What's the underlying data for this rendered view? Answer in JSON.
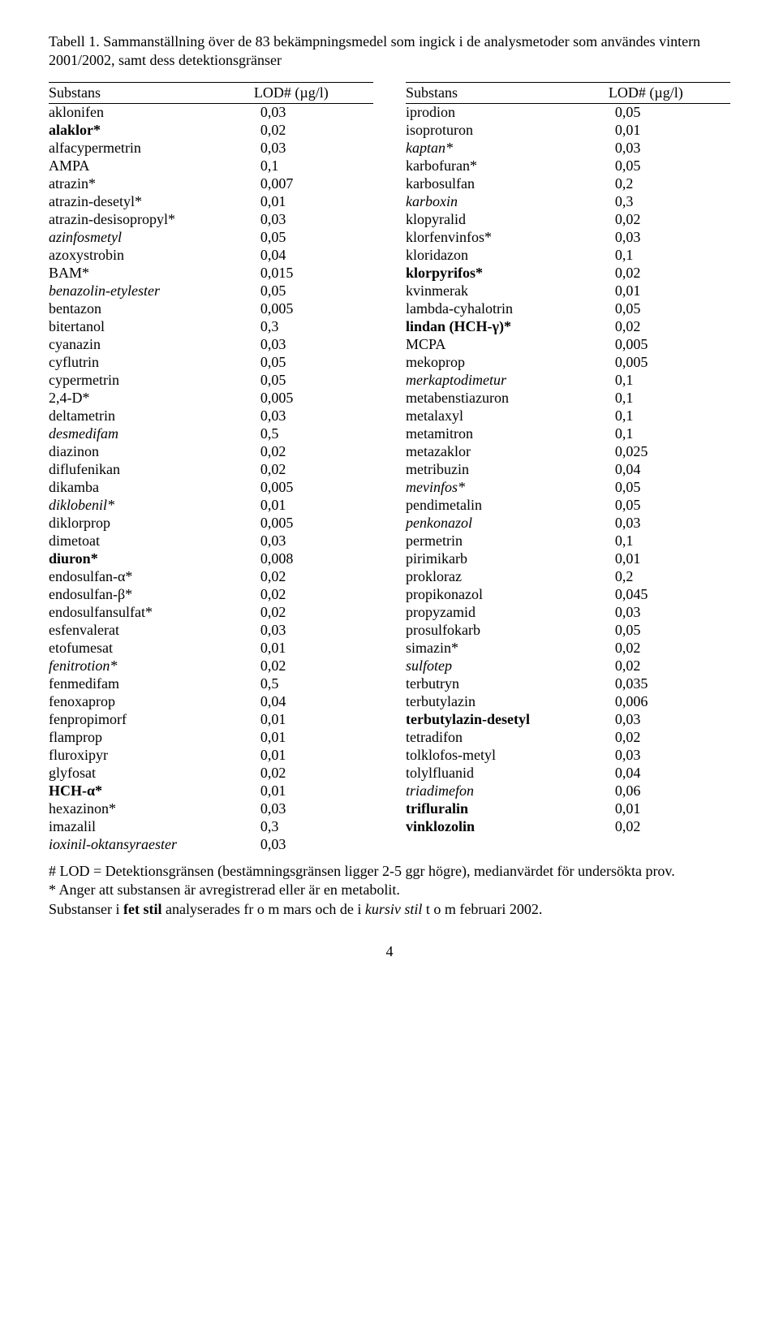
{
  "caption": "Tabell 1. Sammanställning över de 83 bekämpningsmedel som ingick i de analysmetoder som användes vintern 2001/2002, samt dess detektionsgränser",
  "header_substans": "Substans",
  "header_lod": "LOD# (µg/l)",
  "left": [
    {
      "name": "aklonifen",
      "val": "0,03",
      "style": ""
    },
    {
      "name": "alaklor*",
      "val": "0,02",
      "style": "bold"
    },
    {
      "name": "alfacypermetrin",
      "val": "0,03",
      "style": ""
    },
    {
      "name": "AMPA",
      "val": "0,1",
      "style": ""
    },
    {
      "name": "atrazin*",
      "val": "0,007",
      "style": ""
    },
    {
      "name": "atrazin-desetyl*",
      "val": "0,01",
      "style": ""
    },
    {
      "name": "atrazin-desisopropyl*",
      "val": "0,03",
      "style": ""
    },
    {
      "name": "azinfosmetyl",
      "val": "0,05",
      "style": "italic"
    },
    {
      "name": "azoxystrobin",
      "val": "0,04",
      "style": ""
    },
    {
      "name": "BAM*",
      "val": "0,015",
      "style": ""
    },
    {
      "name": "benazolin-etylester",
      "val": "0,05",
      "style": "italic"
    },
    {
      "name": "bentazon",
      "val": "0,005",
      "style": ""
    },
    {
      "name": "bitertanol",
      "val": "0,3",
      "style": ""
    },
    {
      "name": "cyanazin",
      "val": "0,03",
      "style": ""
    },
    {
      "name": "cyflutrin",
      "val": "0,05",
      "style": ""
    },
    {
      "name": "cypermetrin",
      "val": "0,05",
      "style": ""
    },
    {
      "name": "2,4-D*",
      "val": "0,005",
      "style": ""
    },
    {
      "name": "deltametrin",
      "val": "0,03",
      "style": ""
    },
    {
      "name": "desmedifam",
      "val": "0,5",
      "style": "italic"
    },
    {
      "name": "diazinon",
      "val": "0,02",
      "style": ""
    },
    {
      "name": "diflufenikan",
      "val": "0,02",
      "style": ""
    },
    {
      "name": "dikamba",
      "val": "0,005",
      "style": ""
    },
    {
      "name": "diklobenil*",
      "val": "0,01",
      "style": "italic"
    },
    {
      "name": "diklorprop",
      "val": "0,005",
      "style": ""
    },
    {
      "name": "dimetoat",
      "val": "0,03",
      "style": ""
    },
    {
      "name": "diuron*",
      "val": "0,008",
      "style": "bold"
    },
    {
      "name": "endosulfan-α*",
      "val": "0,02",
      "style": ""
    },
    {
      "name": "endosulfan-β*",
      "val": "0,02",
      "style": ""
    },
    {
      "name": "endosulfansulfat*",
      "val": "0,02",
      "style": ""
    },
    {
      "name": "esfenvalerat",
      "val": "0,03",
      "style": ""
    },
    {
      "name": "etofumesat",
      "val": "0,01",
      "style": ""
    },
    {
      "name": "fenitrotion*",
      "val": "0,02",
      "style": "italic"
    },
    {
      "name": "fenmedifam",
      "val": "0,5",
      "style": ""
    },
    {
      "name": "fenoxaprop",
      "val": "0,04",
      "style": ""
    },
    {
      "name": "fenpropimorf",
      "val": "0,01",
      "style": ""
    },
    {
      "name": "flamprop",
      "val": "0,01",
      "style": ""
    },
    {
      "name": "fluroxipyr",
      "val": "0,01",
      "style": ""
    },
    {
      "name": "glyfosat",
      "val": "0,02",
      "style": ""
    },
    {
      "name": "HCH-α*",
      "val": "0,01",
      "style": "bold"
    },
    {
      "name": "hexazinon*",
      "val": "0,03",
      "style": ""
    },
    {
      "name": "imazalil",
      "val": "0,3",
      "style": ""
    },
    {
      "name": "ioxinil-oktansyraester",
      "val": "0,03",
      "style": "italic"
    }
  ],
  "right": [
    {
      "name": "iprodion",
      "val": "0,05",
      "style": ""
    },
    {
      "name": "isoproturon",
      "val": "0,01",
      "style": ""
    },
    {
      "name": "kaptan*",
      "val": "0,03",
      "style": "italic"
    },
    {
      "name": "karbofuran*",
      "val": "0,05",
      "style": ""
    },
    {
      "name": "karbosulfan",
      "val": "0,2",
      "style": ""
    },
    {
      "name": "karboxin",
      "val": "0,3",
      "style": "italic"
    },
    {
      "name": "klopyralid",
      "val": "0,02",
      "style": ""
    },
    {
      "name": "klorfenvinfos*",
      "val": "0,03",
      "style": ""
    },
    {
      "name": "kloridazon",
      "val": "0,1",
      "style": ""
    },
    {
      "name": "klorpyrifos*",
      "val": "0,02",
      "style": "bold"
    },
    {
      "name": "kvinmerak",
      "val": "0,01",
      "style": ""
    },
    {
      "name": "lambda-cyhalotrin",
      "val": "0,05",
      "style": ""
    },
    {
      "name": "lindan (HCH-γ)*",
      "val": "0,02",
      "style": "bold"
    },
    {
      "name": "MCPA",
      "val": "0,005",
      "style": ""
    },
    {
      "name": "mekoprop",
      "val": "0,005",
      "style": ""
    },
    {
      "name": "merkaptodimetur",
      "val": "0,1",
      "style": "italic"
    },
    {
      "name": "metabenstiazuron",
      "val": "0,1",
      "style": ""
    },
    {
      "name": "metalaxyl",
      "val": "0,1",
      "style": ""
    },
    {
      "name": "metamitron",
      "val": "0,1",
      "style": ""
    },
    {
      "name": "metazaklor",
      "val": "0,025",
      "style": ""
    },
    {
      "name": "metribuzin",
      "val": "0,04",
      "style": ""
    },
    {
      "name": "mevinfos*",
      "val": "0,05",
      "style": "italic"
    },
    {
      "name": "pendimetalin",
      "val": "0,05",
      "style": ""
    },
    {
      "name": "penkonazol",
      "val": "0,03",
      "style": "italic"
    },
    {
      "name": "permetrin",
      "val": "0,1",
      "style": ""
    },
    {
      "name": "pirimikarb",
      "val": "0,01",
      "style": ""
    },
    {
      "name": "prokloraz",
      "val": "0,2",
      "style": ""
    },
    {
      "name": "propikonazol",
      "val": "0,045",
      "style": ""
    },
    {
      "name": "propyzamid",
      "val": "0,03",
      "style": ""
    },
    {
      "name": "prosulfokarb",
      "val": "0,05",
      "style": ""
    },
    {
      "name": "simazin*",
      "val": "0,02",
      "style": ""
    },
    {
      "name": "sulfotep",
      "val": "0,02",
      "style": "italic"
    },
    {
      "name": "terbutryn",
      "val": "0,035",
      "style": ""
    },
    {
      "name": "terbutylazin",
      "val": "0,006",
      "style": ""
    },
    {
      "name": "terbutylazin-desetyl",
      "val": "0,03",
      "style": "bold"
    },
    {
      "name": "tetradifon",
      "val": "0,02",
      "style": ""
    },
    {
      "name": "tolklofos-metyl",
      "val": "0,03",
      "style": ""
    },
    {
      "name": "tolylfluanid",
      "val": "0,04",
      "style": ""
    },
    {
      "name": "triadimefon",
      "val": "0,06",
      "style": "italic"
    },
    {
      "name": "trifluralin",
      "val": "0,01",
      "style": "bold"
    },
    {
      "name": "vinklozolin",
      "val": "0,02",
      "style": "bold"
    }
  ],
  "footnote1": "# LOD = Detektionsgränsen (bestämningsgränsen ligger 2-5 ggr högre), medianvärdet för undersökta prov.",
  "footnote2": "* Anger att substansen är avregistrerad eller är en metabolit.",
  "footnote3_pre": "Substanser i ",
  "footnote3_bold": "fet stil",
  "footnote3_mid": " analyserades fr o m mars och de i ",
  "footnote3_italic": "kursiv stil",
  "footnote3_post": " t o m februari 2002.",
  "page_number": "4"
}
